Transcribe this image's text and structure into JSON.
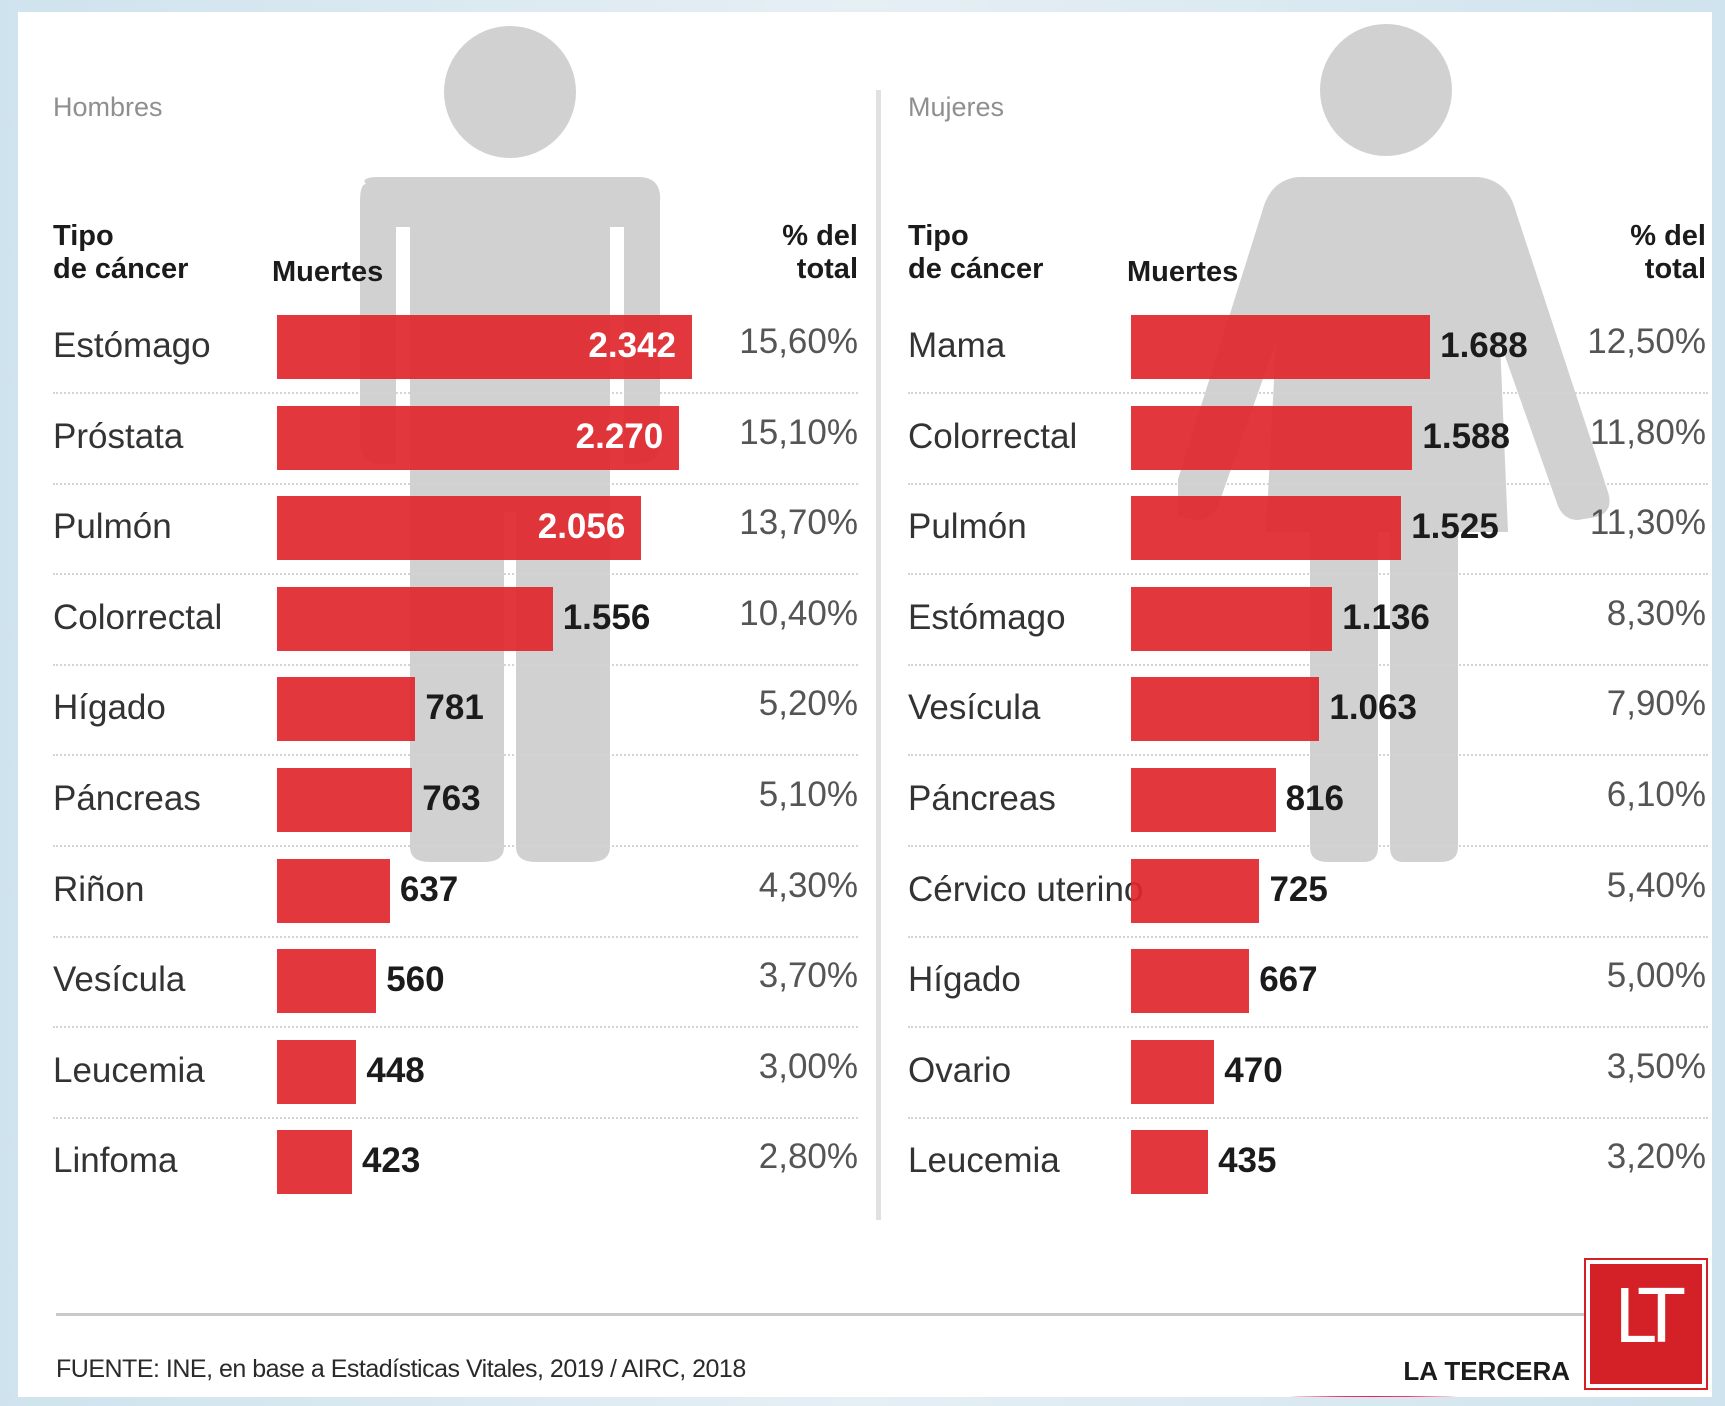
{
  "colors": {
    "bar": "#e0262b",
    "bar_overlay": "#c61b1f",
    "silhouette": "#c9c9c9",
    "logo": "#d32127",
    "accent_arc": "#e91e63"
  },
  "icons": [
    "man-silhouette-icon",
    "woman-silhouette-icon"
  ],
  "headers": {
    "tipo": "Tipo\nde cáncer",
    "muertes": "Muertes",
    "pct": "% del\ntotal"
  },
  "chart_data": [
    {
      "type": "bar",
      "title": "Hombres",
      "xlabel": "Muertes",
      "categories": [
        "Estómago",
        "Próstata",
        "Pulmón",
        "Colorrectal",
        "Hígado",
        "Páncreas",
        "Riñon",
        "Vesícula",
        "Leucemia",
        "Linfoma"
      ],
      "values": [
        2342,
        2270,
        2056,
        1556,
        781,
        763,
        637,
        560,
        448,
        423
      ],
      "value_labels": [
        "2.342",
        "2.270",
        "2.056",
        "1.556",
        "781",
        "763",
        "637",
        "560",
        "448",
        "423"
      ],
      "percent_labels": [
        "15,60%",
        "15,10%",
        "13,70%",
        "10,40%",
        "5,20%",
        "5,10%",
        "4,30%",
        "3,70%",
        "3,00%",
        "2,80%"
      ]
    },
    {
      "type": "bar",
      "title": "Mujeres",
      "xlabel": "Muertes",
      "categories": [
        "Mama",
        "Colorrectal",
        "Pulmón",
        "Estómago",
        "Vesícula",
        "Páncreas",
        "Cérvico uterino",
        "Hígado",
        "Ovario",
        "Leucemia"
      ],
      "values": [
        1688,
        1588,
        1525,
        1136,
        1063,
        816,
        725,
        667,
        470,
        435
      ],
      "value_labels": [
        "1.688",
        "1.588",
        "1.525",
        "1.136",
        "1.063",
        "816",
        "725",
        "667",
        "470",
        "435"
      ],
      "percent_labels": [
        "12,50%",
        "11,80%",
        "11,30%",
        "8,30%",
        "7,90%",
        "6,10%",
        "5,40%",
        "5,00%",
        "3,50%",
        "3,20%"
      ]
    }
  ],
  "footer": {
    "source": "FUENTE: INE, en base a Estadísticas Vitales, 2019 / AIRC, 2018",
    "brand": "LA TERCERA",
    "logo_text": "LT"
  }
}
